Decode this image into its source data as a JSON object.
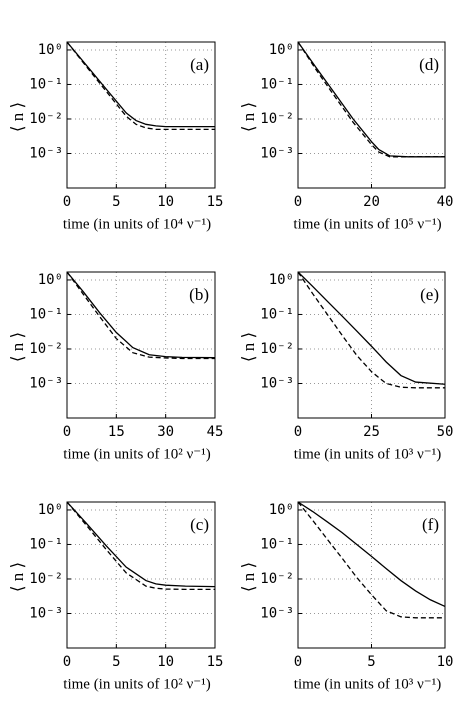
{
  "chart_data": [
    {
      "type": "line",
      "panel_label": "(a)",
      "ylabel": "⟨ n ⟩",
      "xlabel": "time (in units of  10⁴ ν⁻¹)",
      "x": [
        0,
        2,
        4,
        6,
        7,
        8,
        9,
        10,
        12,
        15
      ],
      "xlim": [
        0,
        15
      ],
      "xticks": [
        0,
        5,
        10,
        15
      ],
      "ylim": [
        0.0001,
        1.7
      ],
      "ylog": true,
      "grid": true,
      "yticks": [
        {
          "value": 1,
          "label": "10⁰"
        },
        {
          "value": 0.1,
          "label": "10⁻¹"
        },
        {
          "value": 0.01,
          "label": "10⁻²"
        },
        {
          "value": 0.001,
          "label": "10⁻³"
        }
      ],
      "series": [
        {
          "color": "#000000",
          "linestyle": "solid",
          "values": [
            1.7,
            0.35,
            0.072,
            0.015,
            0.009,
            0.007,
            0.0063,
            0.006,
            0.006,
            0.006
          ]
        },
        {
          "color": "#000000",
          "linestyle": "dashed",
          "values": [
            1.7,
            0.32,
            0.062,
            0.012,
            0.007,
            0.0055,
            0.005,
            0.005,
            0.005,
            0.005
          ]
        }
      ]
    },
    {
      "type": "line",
      "panel_label": "(d)",
      "ylabel": "⟨ n ⟩",
      "xlabel": "time (in units of  10⁵ ν⁻¹)",
      "x": [
        0,
        5,
        10,
        15,
        20,
        22,
        25,
        30,
        40
      ],
      "xlim": [
        0,
        40
      ],
      "xticks": [
        0,
        20,
        40
      ],
      "ylim": [
        0.0001,
        1.7
      ],
      "ylog": true,
      "grid": true,
      "yticks": [
        {
          "value": 1,
          "label": "10⁰"
        },
        {
          "value": 0.1,
          "label": "10⁻¹"
        },
        {
          "value": 0.01,
          "label": "10⁻²"
        },
        {
          "value": 0.001,
          "label": "10⁻³"
        }
      ],
      "series": [
        {
          "color": "#000000",
          "linestyle": "solid",
          "values": [
            1.7,
            0.3,
            0.055,
            0.01,
            0.0022,
            0.0013,
            0.00085,
            0.0008,
            0.0008
          ]
        },
        {
          "color": "#000000",
          "linestyle": "dashed",
          "values": [
            1.7,
            0.26,
            0.045,
            0.008,
            0.0018,
            0.0011,
            0.0008,
            0.0008,
            0.0008
          ]
        }
      ]
    },
    {
      "type": "line",
      "panel_label": "(b)",
      "ylabel": "⟨ n ⟩",
      "xlabel": "time (in units of  10² ν⁻¹)",
      "x": [
        0,
        5,
        10,
        15,
        20,
        25,
        30,
        35,
        45
      ],
      "xlim": [
        0,
        45
      ],
      "xticks": [
        0,
        15,
        30,
        45
      ],
      "ylim": [
        0.0001,
        1.7
      ],
      "ylog": true,
      "grid": true,
      "yticks": [
        {
          "value": 1,
          "label": "10⁰"
        },
        {
          "value": 0.1,
          "label": "10⁻¹"
        },
        {
          "value": 0.01,
          "label": "10⁻²"
        },
        {
          "value": 0.001,
          "label": "10⁻³"
        }
      ],
      "series": [
        {
          "color": "#000000",
          "linestyle": "solid",
          "values": [
            1.7,
            0.45,
            0.11,
            0.03,
            0.011,
            0.0068,
            0.006,
            0.0057,
            0.0056
          ]
        },
        {
          "color": "#000000",
          "linestyle": "dashed",
          "values": [
            1.7,
            0.38,
            0.085,
            0.02,
            0.0078,
            0.0058,
            0.0055,
            0.0053,
            0.0053
          ]
        }
      ]
    },
    {
      "type": "line",
      "panel_label": "(e)",
      "ylabel": "⟨ n ⟩",
      "xlabel": "time (in units of  10³ ν⁻¹)",
      "x": [
        0,
        5,
        10,
        15,
        20,
        25,
        30,
        35,
        40,
        50
      ],
      "xlim": [
        0,
        50
      ],
      "xticks": [
        0,
        25,
        50
      ],
      "ylim": [
        0.0001,
        1.7
      ],
      "ylog": true,
      "grid": true,
      "yticks": [
        {
          "value": 1,
          "label": "10⁰"
        },
        {
          "value": 0.1,
          "label": "10⁻¹"
        },
        {
          "value": 0.01,
          "label": "10⁻²"
        },
        {
          "value": 0.001,
          "label": "10⁻³"
        }
      ],
      "series": [
        {
          "color": "#000000",
          "linestyle": "solid",
          "values": [
            1.7,
            0.65,
            0.24,
            0.09,
            0.033,
            0.012,
            0.0042,
            0.0017,
            0.0011,
            0.00095
          ]
        },
        {
          "color": "#000000",
          "linestyle": "dashed",
          "values": [
            1.7,
            0.4,
            0.1,
            0.025,
            0.0065,
            0.0022,
            0.001,
            0.00078,
            0.00075,
            0.00075
          ]
        }
      ]
    },
    {
      "type": "line",
      "panel_label": "(c)",
      "ylabel": "⟨ n ⟩",
      "xlabel": "time (in units of  10² ν⁻¹)",
      "x": [
        0,
        2,
        4,
        6,
        8,
        9,
        10,
        12,
        15
      ],
      "xlim": [
        0,
        15
      ],
      "xticks": [
        0,
        5,
        10,
        15
      ],
      "ylim": [
        0.0001,
        1.7
      ],
      "ylog": true,
      "grid": true,
      "yticks": [
        {
          "value": 1,
          "label": "10⁰"
        },
        {
          "value": 0.1,
          "label": "10⁻¹"
        },
        {
          "value": 0.01,
          "label": "10⁻²"
        },
        {
          "value": 0.001,
          "label": "10⁻³"
        }
      ],
      "series": [
        {
          "color": "#000000",
          "linestyle": "solid",
          "values": [
            1.7,
            0.4,
            0.09,
            0.022,
            0.009,
            0.0072,
            0.0066,
            0.0062,
            0.006
          ]
        },
        {
          "color": "#000000",
          "linestyle": "dashed",
          "values": [
            1.7,
            0.35,
            0.07,
            0.015,
            0.0062,
            0.0054,
            0.0051,
            0.005,
            0.005
          ]
        }
      ]
    },
    {
      "type": "line",
      "panel_label": "(f)",
      "ylabel": "⟨ n ⟩",
      "xlabel": "time (in units of  10³ ν⁻¹)",
      "x": [
        0,
        1,
        2,
        3,
        4,
        5,
        6,
        7,
        8,
        9,
        10
      ],
      "xlim": [
        0,
        10
      ],
      "xticks": [
        0,
        5,
        10
      ],
      "ylim": [
        0.0001,
        1.7
      ],
      "ylog": true,
      "grid": true,
      "yticks": [
        {
          "value": 1,
          "label": "10⁰"
        },
        {
          "value": 0.1,
          "label": "10⁻¹"
        },
        {
          "value": 0.01,
          "label": "10⁻²"
        },
        {
          "value": 0.001,
          "label": "10⁻³"
        }
      ],
      "series": [
        {
          "color": "#000000",
          "linestyle": "solid",
          "values": [
            1.7,
            0.9,
            0.45,
            0.22,
            0.1,
            0.045,
            0.02,
            0.009,
            0.0045,
            0.0025,
            0.0016
          ]
        },
        {
          "color": "#000000",
          "linestyle": "dashed",
          "values": [
            1.7,
            0.5,
            0.14,
            0.04,
            0.011,
            0.0035,
            0.0012,
            0.0008,
            0.00075,
            0.00075,
            0.00075
          ]
        }
      ]
    }
  ]
}
